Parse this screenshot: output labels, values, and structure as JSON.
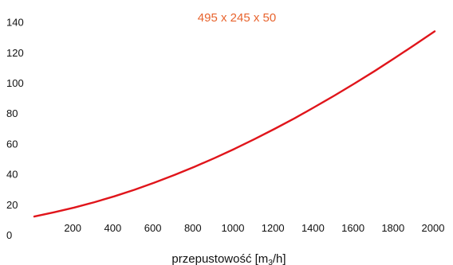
{
  "chart_data": {
    "type": "line",
    "title": "495 x 245 x 50",
    "xlabel": "przepustowość [m3/h]",
    "xlabel_parts": {
      "before": "przepustowość [m",
      "sub": "3",
      "after": "/h]"
    },
    "ylabel": "",
    "xlim": [
      0,
      2000
    ],
    "ylim": [
      0,
      145
    ],
    "x_ticks": [
      200,
      400,
      600,
      800,
      1000,
      1200,
      1400,
      1600,
      1800,
      2000
    ],
    "y_ticks": [
      0,
      20,
      40,
      60,
      80,
      100,
      120,
      140
    ],
    "grid": false,
    "series": [
      {
        "color": "#e0151b",
        "x": [
          0,
          100,
          200,
          300,
          400,
          500,
          600,
          700,
          800,
          900,
          1000,
          1100,
          1200,
          1300,
          1400,
          1500,
          1600,
          1700,
          1800,
          1900,
          2000
        ],
        "y": [
          12,
          14.8,
          17.9,
          21.4,
          25.3,
          29.6,
          34.3,
          39.3,
          44.7,
          50.4,
          56.5,
          62.9,
          69.6,
          76.6,
          84,
          91.6,
          99.5,
          107.7,
          116.2,
          124.9,
          133.8
        ]
      }
    ]
  },
  "colors": {
    "title": "#e8632d",
    "line": "#e0151b"
  }
}
